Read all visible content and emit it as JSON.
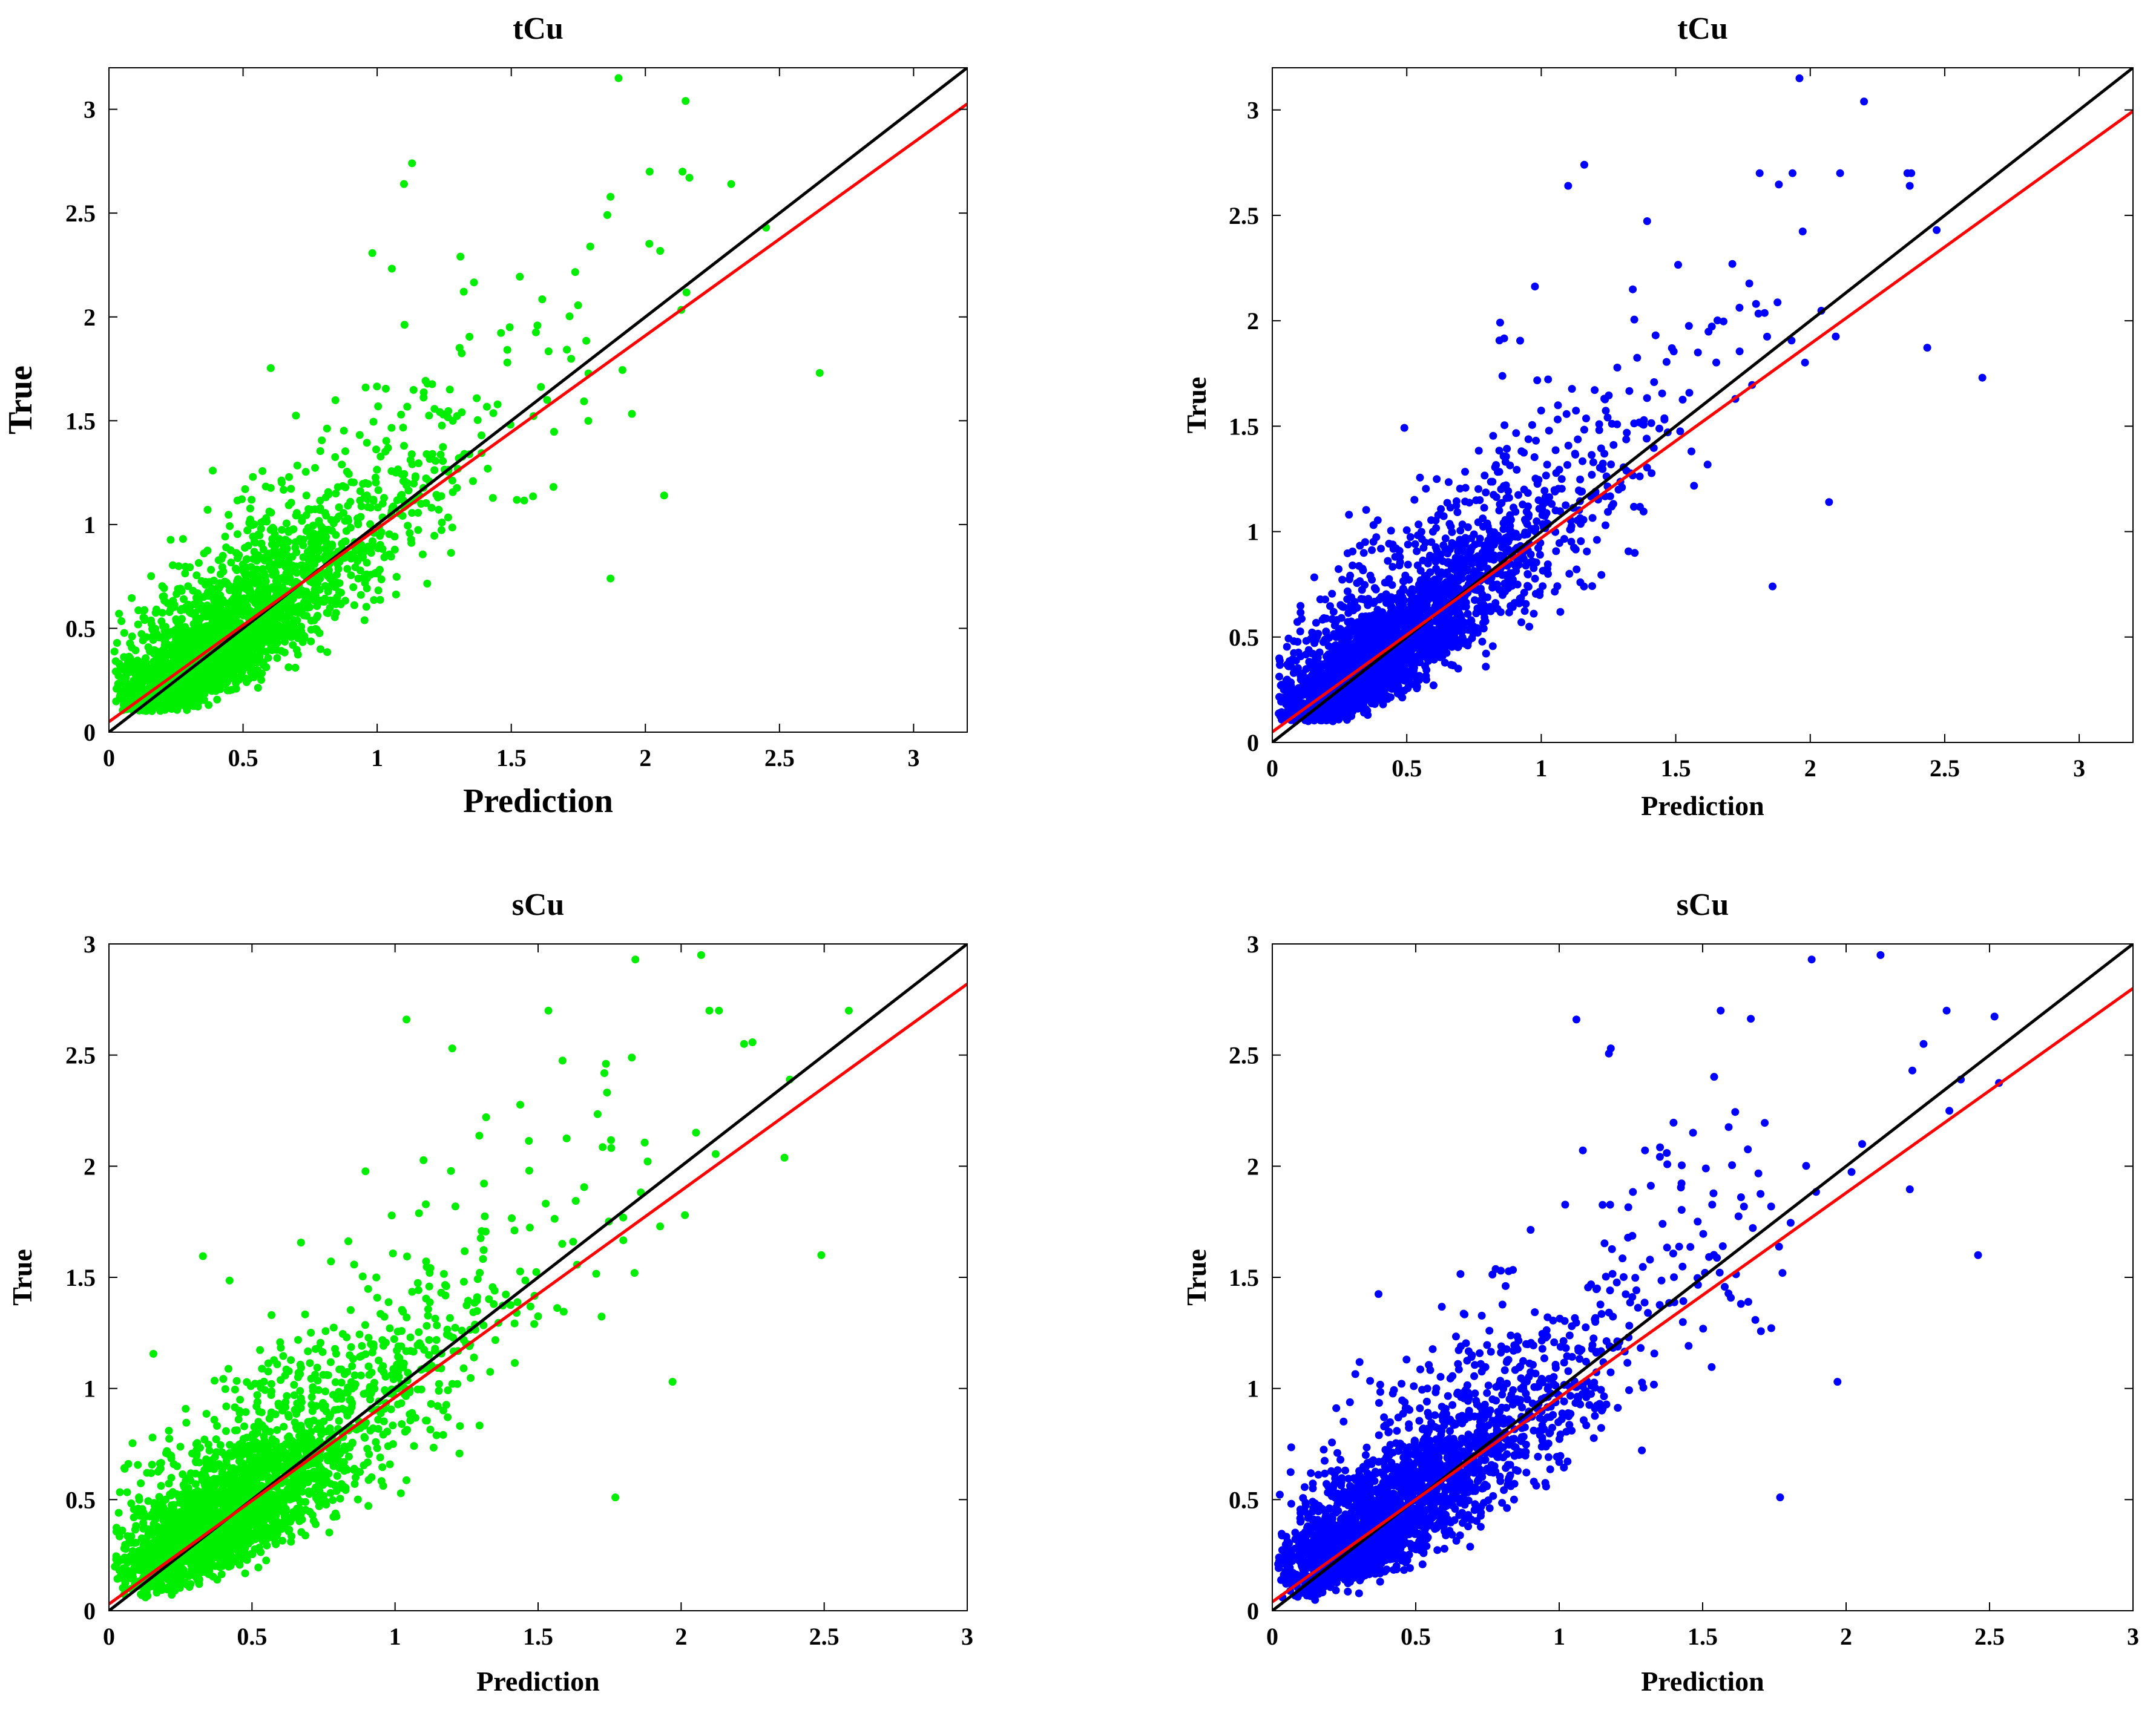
{
  "chart_data": [
    {
      "type": "scatter",
      "title": "tCu",
      "xlabel": "Prediction",
      "ylabel": "True",
      "xlim": [
        0,
        3.2
      ],
      "ylim": [
        0,
        3.2
      ],
      "xticks": [
        0,
        0.5,
        1,
        1.5,
        2,
        2.5,
        3
      ],
      "yticks": [
        0,
        0.5,
        1,
        1.5,
        2,
        2.5,
        3
      ],
      "xtick_labels": [
        "0",
        "0.5",
        "1",
        "1.5",
        "2",
        "2.5",
        "3"
      ],
      "ytick_labels": [
        "0",
        "0.5",
        "1",
        "1.5",
        "2",
        "2.5",
        "3"
      ],
      "grid": false,
      "point_color": "#00ee00",
      "point_count_estimate": 2500,
      "fit_line": {
        "color": "#ff0000",
        "slope": 0.93,
        "intercept": 0.05
      },
      "identity_line": {
        "color": "#000000",
        "slope": 1,
        "intercept": 0
      },
      "outliers": [
        {
          "x": 1.9,
          "y": 3.15
        },
        {
          "x": 2.15,
          "y": 3.04
        },
        {
          "x": 2.65,
          "y": 1.73
        },
        {
          "x": 1.87,
          "y": 0.74
        },
        {
          "x": 2.07,
          "y": 1.14
        },
        {
          "x": 2.32,
          "y": 2.64
        },
        {
          "x": 2.45,
          "y": 2.43
        },
        {
          "x": 1.13,
          "y": 2.74
        },
        {
          "x": 1.1,
          "y": 2.64
        }
      ]
    },
    {
      "type": "scatter",
      "title": "tCu",
      "xlabel": "Prediction",
      "ylabel": "True",
      "xlim": [
        0,
        3.2
      ],
      "ylim": [
        0,
        3.2
      ],
      "xticks": [
        0,
        0.5,
        1,
        1.5,
        2,
        2.5,
        3
      ],
      "yticks": [
        0,
        0.5,
        1,
        1.5,
        2,
        2.5,
        3
      ],
      "xtick_labels": [
        "0",
        "0.5",
        "1",
        "1.5",
        "2",
        "2.5",
        "3"
      ],
      "ytick_labels": [
        "0",
        "0.5",
        "1",
        "1.5",
        "2",
        "2.5",
        "3"
      ],
      "grid": false,
      "point_color": "#0000ff",
      "point_count_estimate": 2500,
      "fit_line": {
        "color": "#ff0000",
        "slope": 0.92,
        "intercept": 0.05
      },
      "identity_line": {
        "color": "#000000",
        "slope": 1,
        "intercept": 0
      },
      "outliers": [
        {
          "x": 1.96,
          "y": 3.15
        },
        {
          "x": 2.2,
          "y": 3.04
        },
        {
          "x": 2.64,
          "y": 1.73
        },
        {
          "x": 1.86,
          "y": 0.74
        },
        {
          "x": 2.07,
          "y": 1.14
        },
        {
          "x": 2.37,
          "y": 2.64
        },
        {
          "x": 2.47,
          "y": 2.43
        },
        {
          "x": 1.16,
          "y": 2.74
        },
        {
          "x": 1.1,
          "y": 2.64
        }
      ]
    },
    {
      "type": "scatter",
      "title": "sCu",
      "xlabel": "Prediction",
      "ylabel": "True",
      "xlim": [
        0,
        3
      ],
      "ylim": [
        0,
        3
      ],
      "xticks": [
        0,
        0.5,
        1,
        1.5,
        2,
        2.5,
        3
      ],
      "yticks": [
        0,
        0.5,
        1,
        1.5,
        2,
        2.5,
        3
      ],
      "xtick_labels": [
        "0",
        "0.5",
        "1",
        "1.5",
        "2",
        "2.5",
        "3"
      ],
      "ytick_labels": [
        "0",
        "0.5",
        "1",
        "1.5",
        "2",
        "2.5",
        "3"
      ],
      "grid": false,
      "point_color": "#00ee00",
      "point_count_estimate": 2500,
      "fit_line": {
        "color": "#ff0000",
        "slope": 0.93,
        "intercept": 0.03
      },
      "identity_line": {
        "color": "#000000",
        "slope": 1,
        "intercept": 0
      },
      "outliers": [
        {
          "x": 1.84,
          "y": 2.93
        },
        {
          "x": 2.07,
          "y": 2.95
        },
        {
          "x": 2.49,
          "y": 1.6
        },
        {
          "x": 1.77,
          "y": 0.51
        },
        {
          "x": 1.97,
          "y": 1.03
        },
        {
          "x": 2.22,
          "y": 2.55
        },
        {
          "x": 2.38,
          "y": 2.39
        },
        {
          "x": 1.04,
          "y": 2.66
        },
        {
          "x": 1.2,
          "y": 2.53
        }
      ]
    },
    {
      "type": "scatter",
      "title": "sCu",
      "xlabel": "Prediction",
      "ylabel": "True",
      "xlim": [
        0,
        3
      ],
      "ylim": [
        0,
        3
      ],
      "xticks": [
        0,
        0.5,
        1,
        1.5,
        2,
        2.5,
        3
      ],
      "yticks": [
        0,
        0.5,
        1,
        1.5,
        2,
        2.5,
        3
      ],
      "xtick_labels": [
        "0",
        "0.5",
        "1",
        "1.5",
        "2",
        "2.5",
        "3"
      ],
      "ytick_labels": [
        "0",
        "0.5",
        "1",
        "1.5",
        "2",
        "2.5",
        "3"
      ],
      "grid": false,
      "point_color": "#0000ff",
      "point_count_estimate": 2500,
      "fit_line": {
        "color": "#ff0000",
        "slope": 0.92,
        "intercept": 0.04
      },
      "identity_line": {
        "color": "#000000",
        "slope": 1,
        "intercept": 0
      },
      "outliers": [
        {
          "x": 1.88,
          "y": 2.93
        },
        {
          "x": 2.12,
          "y": 2.95
        },
        {
          "x": 2.46,
          "y": 1.6
        },
        {
          "x": 1.77,
          "y": 0.51
        },
        {
          "x": 1.97,
          "y": 1.03
        },
        {
          "x": 2.27,
          "y": 2.55
        },
        {
          "x": 2.4,
          "y": 2.39
        },
        {
          "x": 1.06,
          "y": 2.66
        },
        {
          "x": 1.18,
          "y": 2.53
        }
      ]
    }
  ]
}
